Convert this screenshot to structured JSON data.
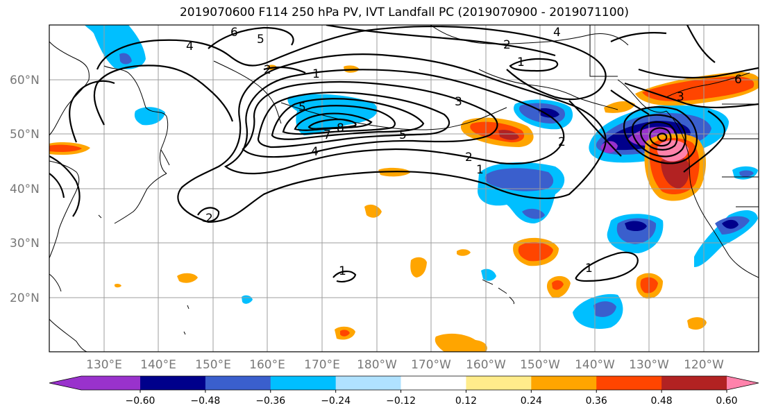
{
  "title": "2019070600 F114 250 hPa PV, IVT Landfall PC (2019070900 - 2019071100)",
  "map": {
    "lon_labels": [
      "130°E",
      "140°E",
      "150°E",
      "160°E",
      "170°E",
      "180°W",
      "170°W",
      "160°W",
      "150°W",
      "140°W",
      "130°W",
      "120°W"
    ],
    "lat_labels": [
      "60°N",
      "50°N",
      "40°N",
      "30°N",
      "20°N"
    ]
  },
  "contour_labels": [
    "6",
    "5",
    "4",
    "2",
    "1",
    "1",
    "4",
    "3",
    "5",
    "8",
    "7",
    "4",
    "5",
    "2",
    "2",
    "1",
    "2",
    "3",
    "6",
    "1",
    "2",
    "1"
  ],
  "colorbar": {
    "colors": [
      "#9932cc",
      "#00008b",
      "#3a5fcd",
      "#00bfff",
      "#b0e2ff",
      "#ffffff",
      "#ffec8b",
      "#ffa500",
      "#ff4500",
      "#b22222",
      "#ff82ab"
    ],
    "tick_labels": [
      "−0.60",
      "−0.48",
      "−0.36",
      "−0.24",
      "−0.12",
      "0.12",
      "0.24",
      "0.36",
      "0.48",
      "0.60"
    ]
  }
}
